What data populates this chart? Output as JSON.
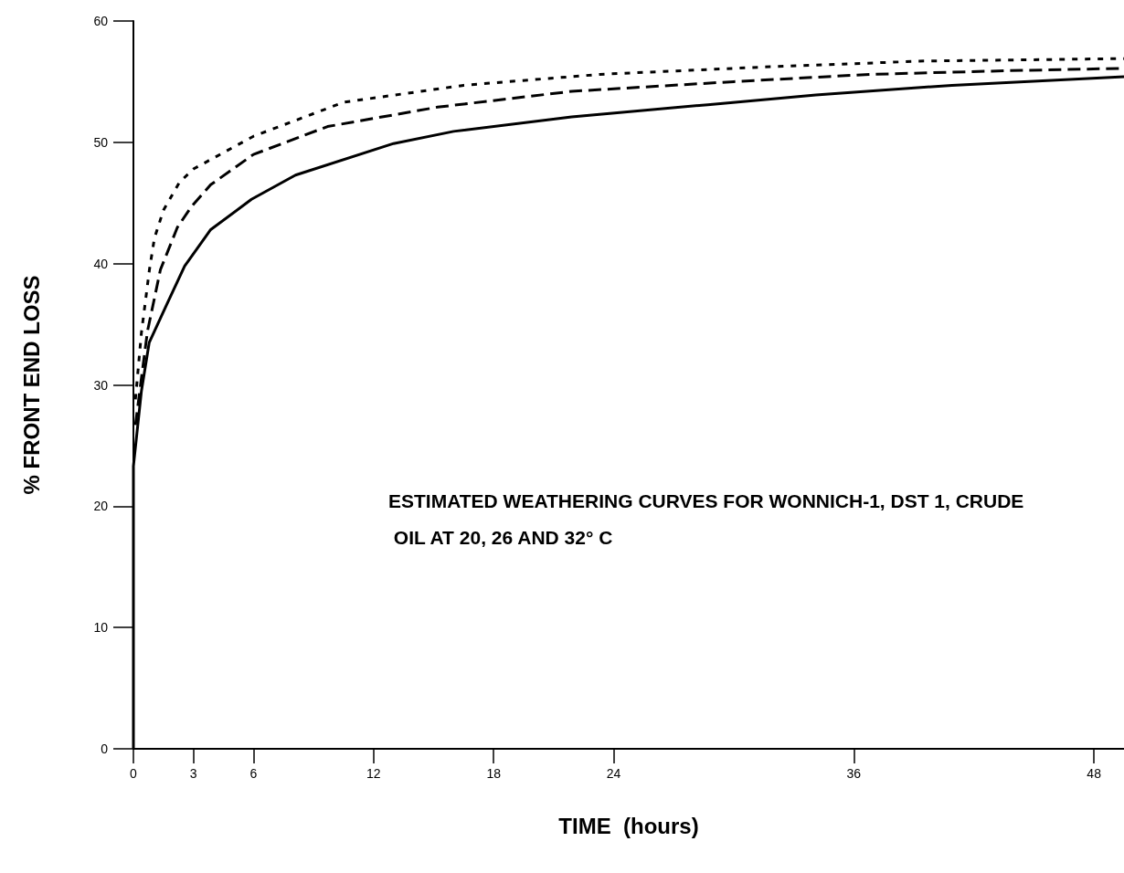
{
  "chart_data": {
    "type": "line",
    "xlabel": "TIME  (hours)",
    "ylabel": "% FRONT END LOSS",
    "xlim": [
      0,
      49.5
    ],
    "xticks": [
      0,
      3,
      6,
      12,
      18,
      24,
      36,
      48
    ],
    "ylim": [
      0,
      60
    ],
    "yticks": [
      0,
      10,
      20,
      30,
      40,
      50,
      60
    ],
    "grid": false,
    "marker": "none",
    "annotations": [
      "ESTIMATED WEATHERING CURVES FOR WONNICH-1, DST 1, CRUDE OIL AT 20, 26 AND 32° C"
    ],
    "series": [
      {
        "color": "#000000",
        "line_style": "solid",
        "x": [
          0,
          0,
          0.4,
          0.79,
          1.63,
          2.56,
          3.86,
          5.9,
          8.1,
          13,
          16,
          21.9,
          28.7,
          34.1,
          40.9,
          49.5
        ],
        "values": [
          0,
          23.3,
          29.5,
          33.5,
          36.5,
          39.8,
          42.8,
          45.3,
          47.3,
          49.9,
          50.9,
          52.1,
          53.1,
          53.9,
          54.7,
          55.4
        ]
      },
      {
        "color": "#000000",
        "line_style": "dashed",
        "x": [
          0.1,
          0.7,
          1.35,
          2.2,
          2.9,
          3.86,
          6,
          9.7,
          15.2,
          21.9,
          30,
          36.8,
          43.6,
          49.5
        ],
        "values": [
          26.7,
          34.4,
          39.5,
          43,
          44.7,
          46.5,
          49,
          51.3,
          52.9,
          54.2,
          55,
          55.6,
          55.9,
          56.1
        ]
      },
      {
        "color": "#000000",
        "line_style": "dotted",
        "x": [
          0.1,
          0.4,
          0.8,
          1.05,
          1.5,
          2.3,
          3,
          6,
          10.5,
          16.5,
          23.3,
          31.4,
          39.5,
          49.5
        ],
        "values": [
          28.8,
          34.3,
          39.5,
          42.1,
          44.4,
          46.7,
          47.8,
          50.5,
          53.3,
          54.7,
          55.6,
          56.2,
          56.7,
          56.9
        ]
      }
    ]
  }
}
